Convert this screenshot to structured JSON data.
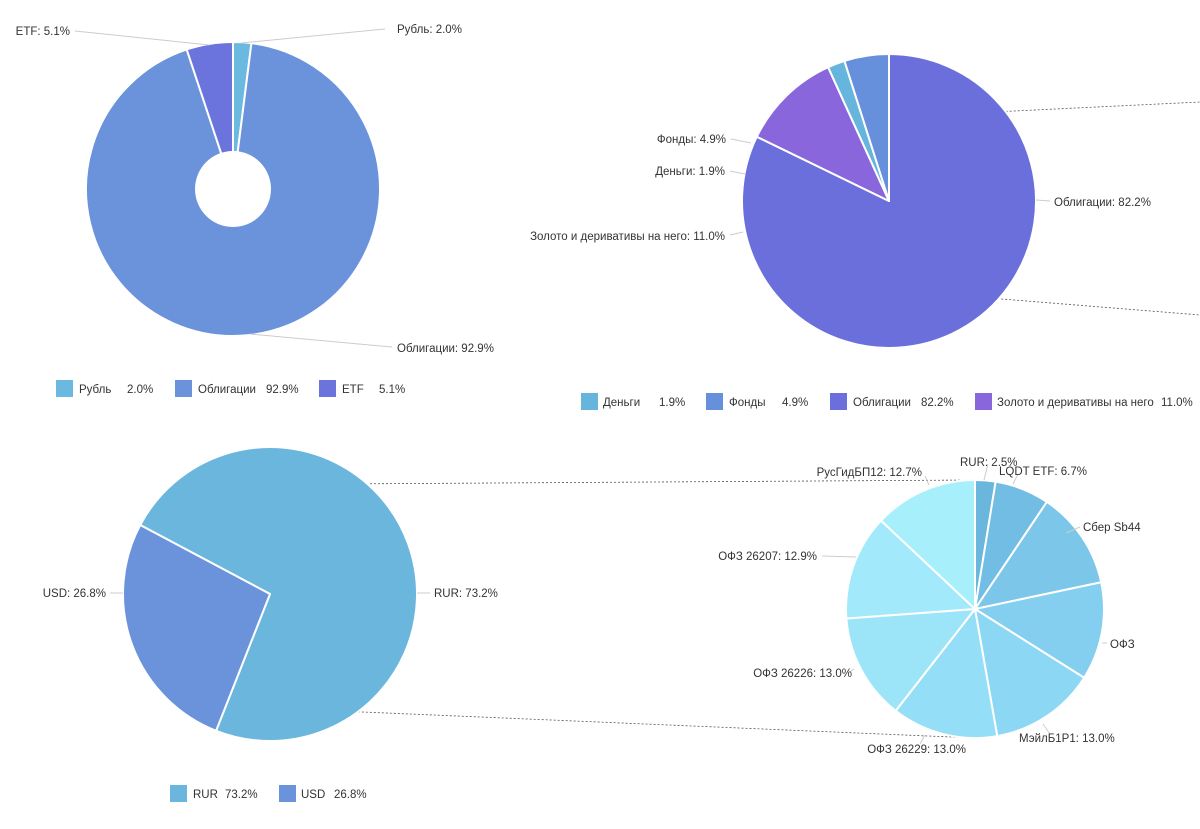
{
  "chart_data": [
    {
      "id": "c1",
      "type": "pie",
      "variant": "donut",
      "title": "",
      "slices": [
        {
          "name": "Рубль",
          "value": 2.0,
          "color": "#6bb8e0",
          "label": "Рубль: 2.0%",
          "legend_value": "2.0%"
        },
        {
          "name": "Облигации",
          "value": 92.9,
          "color": "#6a93dc",
          "label": "Облигации: 92.9%",
          "legend_value": "92.9%"
        },
        {
          "name": "ETF",
          "value": 5.1,
          "color": "#6a74dc",
          "label": "ETF: 5.1%",
          "legend_value": "5.1%"
        }
      ]
    },
    {
      "id": "c2",
      "type": "pie",
      "variant": "pie-of-pie (source)",
      "title": "",
      "slices": [
        {
          "name": "Деньги",
          "value": 1.9,
          "color": "#66b5dc",
          "label": "Деньги: 1.9%",
          "legend_value": "1.9%"
        },
        {
          "name": "Фонды",
          "value": 4.9,
          "color": "#6690dc",
          "label": "Фонды: 4.9%",
          "legend_value": "4.9%"
        },
        {
          "name": "Облигации",
          "value": 82.2,
          "color": "#6a6fdc",
          "label": "Облигации: 82.2%",
          "legend_value": "82.2%"
        },
        {
          "name": "Золото и деривативы на него",
          "value": 11.0,
          "color": "#8a66dc",
          "label": "Золото и деривативы на него: 11.0%",
          "legend_value": "11.0%"
        }
      ]
    },
    {
      "id": "c3",
      "type": "pie",
      "variant": "pie-of-pie (source)",
      "title": "",
      "slices": [
        {
          "name": "RUR",
          "value": 73.2,
          "color": "#6ab6dc",
          "label": "RUR: 73.2%",
          "legend_value": "73.2%"
        },
        {
          "name": "USD",
          "value": 26.8,
          "color": "#6a93dc",
          "label": "USD: 26.8%",
          "legend_value": "26.8%"
        }
      ]
    },
    {
      "id": "c4",
      "type": "pie",
      "variant": "pie-of-pie (breakdown of RUR)",
      "title": "",
      "slices": [
        {
          "name": "RUR",
          "value": 2.5,
          "color": "#6ab6dc",
          "label": "RUR: 2.5%"
        },
        {
          "name": "LQDT ETF",
          "value": 6.7,
          "color": "#72bde3",
          "label": "LQDT ETF: 6.7%"
        },
        {
          "name": "Сбер Sb44",
          "value": 12.0,
          "color": "#7bc6e9",
          "label": "Сбер Sb44"
        },
        {
          "name": "ОФЗ",
          "value": 12.0,
          "color": "#84cfef",
          "label": "ОФЗ"
        },
        {
          "name": "МэйлБ1Р1",
          "value": 13.0,
          "color": "#8cd7f3",
          "label": "МэйлБ1Р1: 13.0%"
        },
        {
          "name": "ОФЗ 26229",
          "value": 13.0,
          "color": "#94dff7",
          "label": "ОФЗ 26229: 13.0%"
        },
        {
          "name": "ОФЗ 26226",
          "value": 13.0,
          "color": "#9ce5f9",
          "label": "ОФЗ 26226: 13.0%"
        },
        {
          "name": "ОФЗ 26207",
          "value": 12.9,
          "color": "#a2eafb",
          "label": "ОФЗ 26207: 12.9%"
        },
        {
          "name": "РусГидБП12",
          "value": 12.7,
          "color": "#a8effc",
          "label": "РусГидБП12: 12.7%"
        }
      ]
    }
  ]
}
